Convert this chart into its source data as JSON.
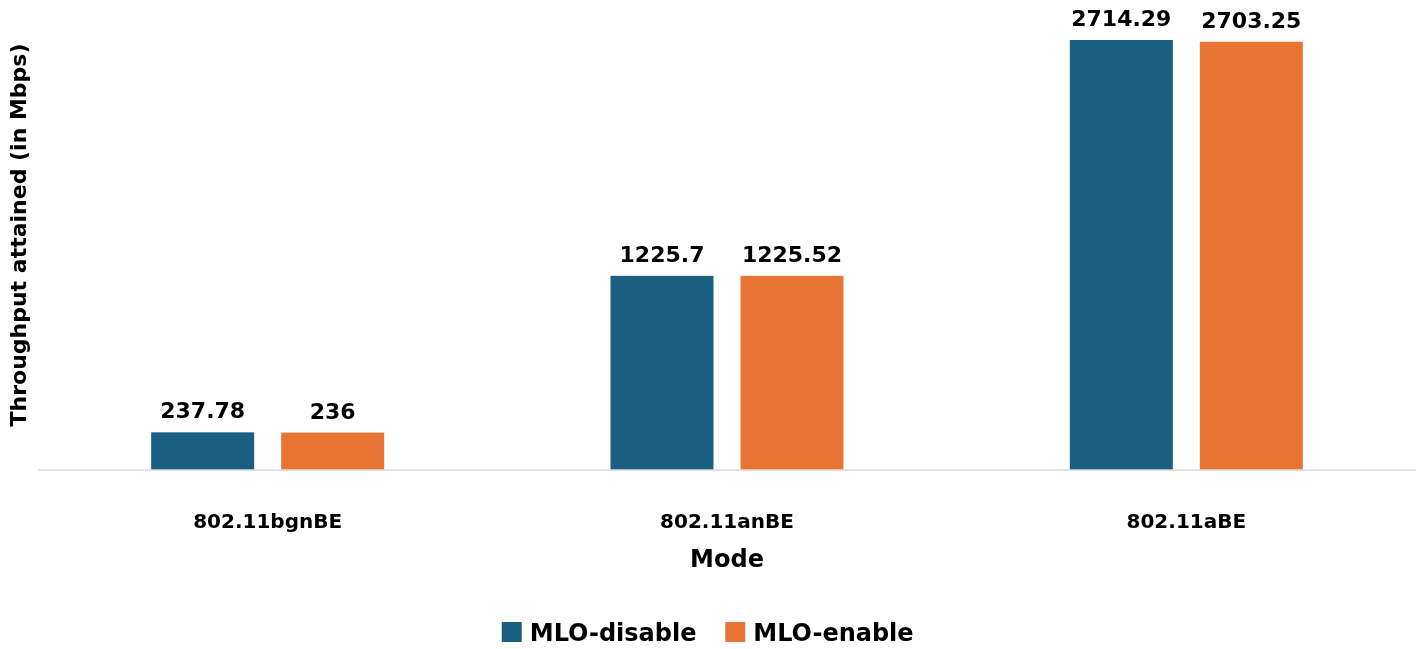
{
  "chart_data": {
    "type": "bar",
    "xlabel": "Mode",
    "ylabel": "Throughput attained (in Mbps)",
    "categories": [
      "802.11bgnBE",
      "802.11anBE",
      "802.11aBE"
    ],
    "series": [
      {
        "name": "MLO-disable",
        "color": "#1a5f80",
        "values": [
          237.78,
          1225.7,
          2714.29
        ]
      },
      {
        "name": "MLO-enable",
        "color": "#e97434",
        "values": [
          236,
          1225.52,
          2703.25
        ]
      }
    ],
    "data_labels": true,
    "legend": "bottom"
  }
}
